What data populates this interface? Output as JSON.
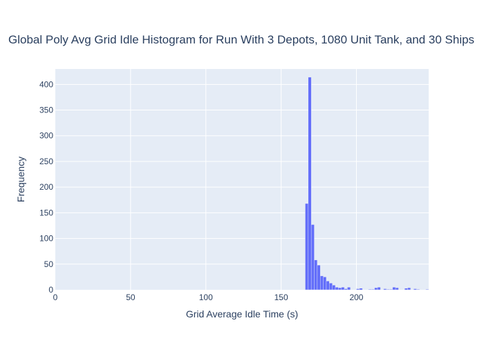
{
  "chart_data": {
    "type": "bar",
    "title": "Global Poly Avg Grid Idle Histogram for Run With 3 Depots, 1080 Unit Tank, and 30 Ships",
    "xlabel": "Grid Average Idle Time (s)",
    "ylabel": "Frequency",
    "xlim": [
      0,
      248
    ],
    "ylim": [
      0,
      430
    ],
    "x_ticks": [
      0,
      50,
      100,
      150,
      200
    ],
    "y_ticks": [
      0,
      50,
      100,
      150,
      200,
      250,
      300,
      350,
      400
    ],
    "grid": true,
    "bin_width": 2,
    "bin_starts": [
      166,
      168,
      170,
      172,
      174,
      176,
      178,
      180,
      182,
      184,
      186,
      188,
      190,
      192,
      194,
      196,
      198,
      200,
      202,
      204,
      206,
      208,
      210,
      212,
      214,
      216,
      218,
      220,
      222,
      224,
      226,
      228,
      230,
      232,
      234,
      236,
      238,
      240,
      242,
      244,
      246
    ],
    "values": [
      168,
      414,
      127,
      58,
      48,
      27,
      25,
      17,
      13,
      9,
      5,
      4,
      5,
      2,
      5,
      0,
      0,
      2,
      3,
      0,
      0,
      1,
      1,
      4,
      5,
      0,
      2,
      1,
      1,
      5,
      4,
      0,
      0,
      3,
      4,
      0,
      2,
      1,
      0,
      0,
      1
    ],
    "bar_color": "#636efa",
    "plot_bgcolor": "#e5ecf6"
  }
}
